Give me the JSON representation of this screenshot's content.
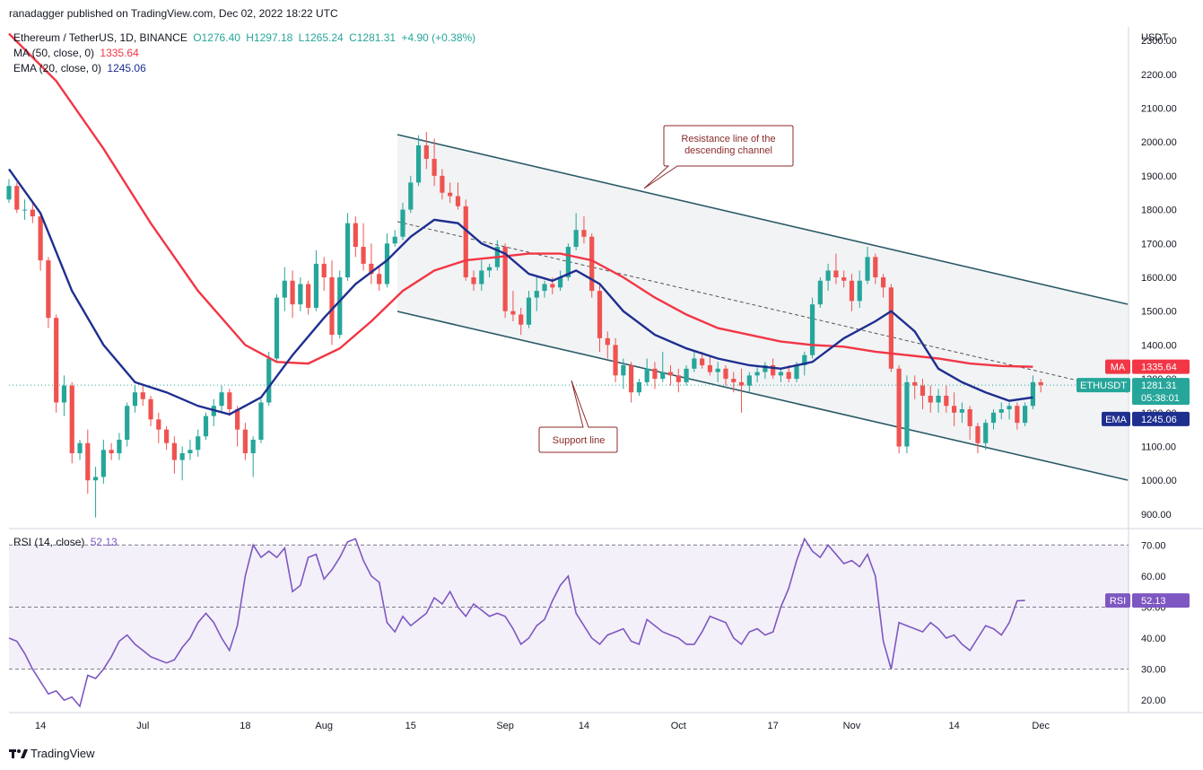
{
  "publisher": "ranadagger published on TradingView.com, Dec 02, 2022 18:22 UTC",
  "symbol_line": {
    "name": "Ethereum / TetherUS, 1D, BINANCE",
    "open": "O1276.40",
    "high": "H1297.18",
    "low": "L1265.24",
    "close": "C1281.31",
    "change": "+4.90 (+0.38%)"
  },
  "ma_line": {
    "label": "MA (50, close, 0)",
    "value": "1335.64"
  },
  "ema_line": {
    "label": "EMA (20, close, 0)",
    "value": "1245.06"
  },
  "rsi_line": {
    "label": "RSI (14, close)",
    "value": "52.13"
  },
  "footer_brand": "TradingView",
  "colors": {
    "up": "#26a69a",
    "down": "#ef5350",
    "ma": "#f23645",
    "ema": "#1e2f8f",
    "rsi": "#7e57c2",
    "channel": "#2a5a66"
  },
  "chart_data": {
    "type": "candlestick",
    "price_axis_unit": "USDT",
    "price_ticks": [
      900,
      1000,
      1100,
      1200,
      1300,
      1400,
      1500,
      1600,
      1700,
      1800,
      1900,
      2000,
      2100,
      2200,
      2300
    ],
    "price_range": [
      860,
      2340
    ],
    "time_labels": [
      {
        "label": "14",
        "index": 4
      },
      {
        "label": "Jul",
        "index": 17
      },
      {
        "label": "18",
        "index": 30
      },
      {
        "label": "Aug",
        "index": 40
      },
      {
        "label": "15",
        "index": 51
      },
      {
        "label": "Sep",
        "index": 63
      },
      {
        "label": "14",
        "index": 73
      },
      {
        "label": "Oct",
        "index": 85
      },
      {
        "label": "17",
        "index": 97
      },
      {
        "label": "Nov",
        "index": 107
      },
      {
        "label": "14",
        "index": 120
      },
      {
        "label": "Dec",
        "index": 131
      }
    ],
    "candles": [
      [
        1830,
        1890,
        1820,
        1870
      ],
      [
        1870,
        1880,
        1790,
        1800
      ],
      [
        1800,
        1830,
        1770,
        1800
      ],
      [
        1800,
        1820,
        1760,
        1780
      ],
      [
        1780,
        1790,
        1620,
        1650
      ],
      [
        1650,
        1660,
        1450,
        1480
      ],
      [
        1480,
        1490,
        1200,
        1230
      ],
      [
        1230,
        1310,
        1190,
        1280
      ],
      [
        1280,
        1290,
        1050,
        1080
      ],
      [
        1080,
        1120,
        1060,
        1110
      ],
      [
        1110,
        1150,
        960,
        1000
      ],
      [
        1000,
        1040,
        890,
        1010
      ],
      [
        1010,
        1120,
        990,
        1090
      ],
      [
        1090,
        1110,
        1060,
        1080
      ],
      [
        1080,
        1140,
        1060,
        1120
      ],
      [
        1120,
        1230,
        1100,
        1220
      ],
      [
        1220,
        1280,
        1200,
        1260
      ],
      [
        1260,
        1280,
        1220,
        1240
      ],
      [
        1240,
        1250,
        1160,
        1180
      ],
      [
        1180,
        1200,
        1110,
        1150
      ],
      [
        1150,
        1160,
        1090,
        1110
      ],
      [
        1110,
        1130,
        1020,
        1060
      ],
      [
        1060,
        1100,
        1000,
        1080
      ],
      [
        1080,
        1120,
        1060,
        1090
      ],
      [
        1090,
        1150,
        1070,
        1130
      ],
      [
        1130,
        1200,
        1120,
        1190
      ],
      [
        1190,
        1240,
        1160,
        1220
      ],
      [
        1220,
        1280,
        1200,
        1260
      ],
      [
        1260,
        1270,
        1190,
        1210
      ],
      [
        1210,
        1220,
        1100,
        1150
      ],
      [
        1150,
        1170,
        1060,
        1080
      ],
      [
        1080,
        1130,
        1010,
        1120
      ],
      [
        1120,
        1240,
        1110,
        1230
      ],
      [
        1230,
        1380,
        1220,
        1360
      ],
      [
        1360,
        1550,
        1350,
        1540
      ],
      [
        1540,
        1630,
        1500,
        1590
      ],
      [
        1590,
        1620,
        1480,
        1520
      ],
      [
        1520,
        1600,
        1500,
        1580
      ],
      [
        1580,
        1590,
        1490,
        1510
      ],
      [
        1510,
        1680,
        1500,
        1640
      ],
      [
        1640,
        1660,
        1560,
        1600
      ],
      [
        1600,
        1650,
        1400,
        1430
      ],
      [
        1430,
        1620,
        1420,
        1600
      ],
      [
        1600,
        1790,
        1590,
        1760
      ],
      [
        1760,
        1780,
        1660,
        1690
      ],
      [
        1690,
        1760,
        1620,
        1640
      ],
      [
        1640,
        1700,
        1580,
        1610
      ],
      [
        1610,
        1630,
        1560,
        1580
      ],
      [
        1580,
        1730,
        1570,
        1700
      ],
      [
        1700,
        1740,
        1690,
        1720
      ],
      [
        1720,
        1820,
        1710,
        1800
      ],
      [
        1800,
        1900,
        1790,
        1880
      ],
      [
        1880,
        2020,
        1870,
        1990
      ],
      [
        1990,
        2030,
        1920,
        1950
      ],
      [
        1950,
        2010,
        1870,
        1900
      ],
      [
        1900,
        1920,
        1830,
        1850
      ],
      [
        1850,
        1880,
        1820,
        1840
      ],
      [
        1840,
        1880,
        1800,
        1810
      ],
      [
        1810,
        1830,
        1590,
        1600
      ],
      [
        1600,
        1620,
        1560,
        1580
      ],
      [
        1580,
        1650,
        1560,
        1620
      ],
      [
        1620,
        1640,
        1600,
        1630
      ],
      [
        1630,
        1710,
        1620,
        1690
      ],
      [
        1690,
        1700,
        1480,
        1500
      ],
      [
        1500,
        1560,
        1470,
        1490
      ],
      [
        1490,
        1510,
        1430,
        1460
      ],
      [
        1460,
        1560,
        1450,
        1540
      ],
      [
        1540,
        1600,
        1500,
        1560
      ],
      [
        1560,
        1590,
        1540,
        1580
      ],
      [
        1580,
        1600,
        1550,
        1570
      ],
      [
        1570,
        1620,
        1560,
        1600
      ],
      [
        1600,
        1700,
        1590,
        1690
      ],
      [
        1690,
        1790,
        1680,
        1740
      ],
      [
        1740,
        1780,
        1700,
        1720
      ],
      [
        1720,
        1730,
        1540,
        1560
      ],
      [
        1560,
        1580,
        1380,
        1420
      ],
      [
        1420,
        1440,
        1360,
        1400
      ],
      [
        1400,
        1420,
        1290,
        1310
      ],
      [
        1310,
        1360,
        1270,
        1340
      ],
      [
        1340,
        1350,
        1230,
        1260
      ],
      [
        1260,
        1300,
        1250,
        1290
      ],
      [
        1290,
        1360,
        1280,
        1330
      ],
      [
        1330,
        1350,
        1270,
        1300
      ],
      [
        1300,
        1380,
        1290,
        1320
      ],
      [
        1320,
        1340,
        1280,
        1310
      ],
      [
        1310,
        1330,
        1260,
        1290
      ],
      [
        1290,
        1340,
        1280,
        1330
      ],
      [
        1330,
        1380,
        1320,
        1360
      ],
      [
        1360,
        1380,
        1330,
        1340
      ],
      [
        1340,
        1370,
        1310,
        1320
      ],
      [
        1320,
        1350,
        1290,
        1330
      ],
      [
        1330,
        1340,
        1280,
        1300
      ],
      [
        1300,
        1320,
        1260,
        1290
      ],
      [
        1290,
        1330,
        1200,
        1280
      ],
      [
        1280,
        1320,
        1260,
        1310
      ],
      [
        1310,
        1340,
        1290,
        1320
      ],
      [
        1320,
        1350,
        1300,
        1340
      ],
      [
        1340,
        1360,
        1300,
        1310
      ],
      [
        1310,
        1330,
        1290,
        1320
      ],
      [
        1320,
        1340,
        1290,
        1300
      ],
      [
        1300,
        1350,
        1290,
        1340
      ],
      [
        1340,
        1380,
        1310,
        1370
      ],
      [
        1370,
        1540,
        1360,
        1520
      ],
      [
        1520,
        1600,
        1510,
        1590
      ],
      [
        1590,
        1640,
        1560,
        1620
      ],
      [
        1620,
        1670,
        1580,
        1600
      ],
      [
        1600,
        1620,
        1570,
        1590
      ],
      [
        1590,
        1610,
        1500,
        1530
      ],
      [
        1530,
        1620,
        1510,
        1590
      ],
      [
        1590,
        1690,
        1580,
        1660
      ],
      [
        1660,
        1670,
        1580,
        1600
      ],
      [
        1600,
        1610,
        1540,
        1570
      ],
      [
        1570,
        1580,
        1320,
        1330
      ],
      [
        1330,
        1340,
        1080,
        1100
      ],
      [
        1100,
        1310,
        1080,
        1290
      ],
      [
        1290,
        1310,
        1240,
        1280
      ],
      [
        1280,
        1300,
        1210,
        1250
      ],
      [
        1250,
        1280,
        1200,
        1230
      ],
      [
        1230,
        1270,
        1200,
        1250
      ],
      [
        1250,
        1280,
        1200,
        1220
      ],
      [
        1220,
        1260,
        1160,
        1200
      ],
      [
        1200,
        1230,
        1170,
        1210
      ],
      [
        1210,
        1220,
        1120,
        1160
      ],
      [
        1160,
        1170,
        1080,
        1110
      ],
      [
        1110,
        1180,
        1090,
        1170
      ],
      [
        1170,
        1210,
        1150,
        1200
      ],
      [
        1200,
        1230,
        1180,
        1210
      ],
      [
        1210,
        1230,
        1180,
        1220
      ],
      [
        1220,
        1230,
        1150,
        1170
      ],
      [
        1170,
        1230,
        1160,
        1220
      ],
      [
        1220,
        1310,
        1210,
        1290
      ],
      [
        1290,
        1300,
        1260,
        1281.31
      ]
    ],
    "ma50": [
      [
        0,
        2320
      ],
      [
        6,
        2180
      ],
      [
        12,
        1980
      ],
      [
        18,
        1760
      ],
      [
        24,
        1560
      ],
      [
        30,
        1400
      ],
      [
        34,
        1350
      ],
      [
        38,
        1345
      ],
      [
        42,
        1390
      ],
      [
        46,
        1470
      ],
      [
        50,
        1560
      ],
      [
        54,
        1620
      ],
      [
        58,
        1650
      ],
      [
        62,
        1660
      ],
      [
        66,
        1670
      ],
      [
        70,
        1670
      ],
      [
        74,
        1650
      ],
      [
        78,
        1600
      ],
      [
        82,
        1540
      ],
      [
        86,
        1490
      ],
      [
        90,
        1450
      ],
      [
        94,
        1430
      ],
      [
        98,
        1410
      ],
      [
        102,
        1400
      ],
      [
        106,
        1395
      ],
      [
        110,
        1380
      ],
      [
        114,
        1370
      ],
      [
        118,
        1360
      ],
      [
        122,
        1345
      ],
      [
        126,
        1338
      ],
      [
        130,
        1335.64
      ]
    ],
    "ema20": [
      [
        0,
        1920
      ],
      [
        4,
        1790
      ],
      [
        8,
        1560
      ],
      [
        12,
        1400
      ],
      [
        16,
        1290
      ],
      [
        20,
        1260
      ],
      [
        24,
        1220
      ],
      [
        28,
        1195
      ],
      [
        32,
        1245
      ],
      [
        36,
        1370
      ],
      [
        40,
        1480
      ],
      [
        44,
        1580
      ],
      [
        48,
        1650
      ],
      [
        51,
        1720
      ],
      [
        54,
        1770
      ],
      [
        57,
        1760
      ],
      [
        60,
        1700
      ],
      [
        63,
        1670
      ],
      [
        66,
        1610
      ],
      [
        69,
        1590
      ],
      [
        72,
        1620
      ],
      [
        75,
        1580
      ],
      [
        78,
        1500
      ],
      [
        82,
        1430
      ],
      [
        86,
        1390
      ],
      [
        90,
        1360
      ],
      [
        94,
        1340
      ],
      [
        98,
        1330
      ],
      [
        102,
        1350
      ],
      [
        106,
        1420
      ],
      [
        110,
        1470
      ],
      [
        112,
        1500
      ],
      [
        115,
        1440
      ],
      [
        118,
        1330
      ],
      [
        121,
        1290
      ],
      [
        124,
        1260
      ],
      [
        127,
        1235
      ],
      [
        130,
        1245.06
      ]
    ],
    "rsi": {
      "ticks": [
        20,
        30,
        40,
        50,
        60,
        70
      ],
      "levels": [
        30,
        50,
        70
      ],
      "range": [
        16,
        75
      ],
      "values": [
        40,
        39,
        35,
        30,
        26,
        22,
        23,
        20,
        21,
        18,
        28,
        27,
        30,
        34,
        39,
        41,
        38,
        36,
        34,
        33,
        32,
        33,
        37,
        40,
        45,
        48,
        45,
        40,
        36,
        44,
        60,
        70,
        66,
        68,
        66,
        69,
        55,
        57,
        66,
        67,
        59,
        62,
        66,
        71,
        72,
        65,
        60,
        58,
        45,
        42,
        47,
        44,
        46,
        48,
        53,
        51,
        55,
        50,
        47,
        51,
        49,
        47,
        48,
        47,
        43,
        38,
        40,
        44,
        46,
        52,
        57,
        60,
        48,
        44,
        40,
        38,
        41,
        42,
        43,
        39,
        38,
        46,
        44,
        42,
        41,
        40,
        38,
        38,
        42,
        47,
        46,
        45,
        40,
        38,
        42,
        43,
        41,
        42,
        50,
        56,
        65,
        72,
        68,
        66,
        70,
        67,
        64,
        65,
        63,
        67,
        60,
        39,
        30,
        45,
        44,
        43,
        42,
        45,
        43,
        40,
        41,
        38,
        36,
        40,
        44,
        43,
        41,
        45,
        52,
        52.13
      ]
    },
    "last_price_label": "ETHUSDT",
    "last_price_value": "1281.31",
    "countdown": "05:38:01",
    "ma_badge_label": "MA",
    "ma_badge_value": "1335.64",
    "ema_badge_label": "EMA",
    "ema_badge_value": "1245.06",
    "rsi_badge_label": "RSI",
    "rsi_badge_value": "52.13",
    "annotations": [
      {
        "text": [
          "Resistance line of the",
          "descending channel"
        ]
      },
      {
        "text": [
          "Support line"
        ]
      }
    ]
  }
}
